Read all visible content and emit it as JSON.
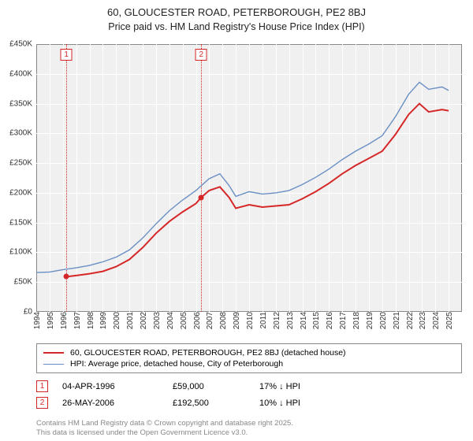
{
  "title": "60, GLOUCESTER ROAD, PETERBOROUGH, PE2 8BJ",
  "subtitle": "Price paid vs. HM Land Registry's House Price Index (HPI)",
  "chart": {
    "type": "line",
    "background_color": "#f0f0f0",
    "grid_color": "#ffffff",
    "border_color": "#888888",
    "x": {
      "min": 1994,
      "max": 2026,
      "ticks": [
        1994,
        1995,
        1996,
        1997,
        1998,
        1999,
        2000,
        2001,
        2002,
        2003,
        2004,
        2005,
        2006,
        2007,
        2008,
        2009,
        2010,
        2011,
        2012,
        2013,
        2014,
        2015,
        2016,
        2017,
        2018,
        2019,
        2020,
        2021,
        2022,
        2023,
        2024,
        2025
      ]
    },
    "y": {
      "min": 0,
      "max": 450000,
      "ticks": [
        0,
        50000,
        100000,
        150000,
        200000,
        250000,
        300000,
        350000,
        400000,
        450000
      ],
      "tick_labels": [
        "£0",
        "£50K",
        "£100K",
        "£150K",
        "£200K",
        "£250K",
        "£300K",
        "£350K",
        "£400K",
        "£450K"
      ]
    },
    "series": [
      {
        "id": "price_paid",
        "label": "60, GLOUCESTER ROAD, PETERBOROUGH, PE2 8BJ (detached house)",
        "color": "#d62728",
        "line_width": 2,
        "points": [
          [
            1996.26,
            59000
          ],
          [
            1997,
            61000
          ],
          [
            1998,
            64000
          ],
          [
            1999,
            68000
          ],
          [
            2000,
            76000
          ],
          [
            2001,
            88000
          ],
          [
            2002,
            108000
          ],
          [
            2003,
            132000
          ],
          [
            2004,
            152000
          ],
          [
            2005,
            168000
          ],
          [
            2006,
            182000
          ],
          [
            2006.4,
            192500
          ],
          [
            2007,
            204000
          ],
          [
            2007.8,
            210000
          ],
          [
            2008.5,
            192000
          ],
          [
            2009,
            174000
          ],
          [
            2010,
            180000
          ],
          [
            2011,
            176000
          ],
          [
            2012,
            178000
          ],
          [
            2013,
            180000
          ],
          [
            2014,
            190000
          ],
          [
            2015,
            202000
          ],
          [
            2016,
            216000
          ],
          [
            2017,
            232000
          ],
          [
            2018,
            246000
          ],
          [
            2019,
            258000
          ],
          [
            2020,
            270000
          ],
          [
            2021,
            298000
          ],
          [
            2022,
            332000
          ],
          [
            2022.8,
            350000
          ],
          [
            2023.5,
            336000
          ],
          [
            2024.5,
            340000
          ],
          [
            2025,
            338000
          ]
        ]
      },
      {
        "id": "hpi",
        "label": "HPI: Average price, detached house, City of Peterborough",
        "color": "#6a8fc4",
        "line_width": 1.4,
        "points": [
          [
            1994,
            66000
          ],
          [
            1995,
            67000
          ],
          [
            1996,
            71000
          ],
          [
            1997,
            74000
          ],
          [
            1998,
            78000
          ],
          [
            1999,
            84000
          ],
          [
            2000,
            92000
          ],
          [
            2001,
            104000
          ],
          [
            2002,
            124000
          ],
          [
            2003,
            148000
          ],
          [
            2004,
            170000
          ],
          [
            2005,
            188000
          ],
          [
            2006,
            204000
          ],
          [
            2007,
            224000
          ],
          [
            2007.8,
            232000
          ],
          [
            2008.5,
            212000
          ],
          [
            2009,
            194000
          ],
          [
            2010,
            202000
          ],
          [
            2011,
            198000
          ],
          [
            2012,
            200000
          ],
          [
            2013,
            204000
          ],
          [
            2014,
            214000
          ],
          [
            2015,
            226000
          ],
          [
            2016,
            240000
          ],
          [
            2017,
            256000
          ],
          [
            2018,
            270000
          ],
          [
            2019,
            282000
          ],
          [
            2020,
            296000
          ],
          [
            2021,
            328000
          ],
          [
            2022,
            366000
          ],
          [
            2022.8,
            386000
          ],
          [
            2023.5,
            374000
          ],
          [
            2024.5,
            378000
          ],
          [
            2025,
            372000
          ]
        ]
      }
    ],
    "events": [
      {
        "n": "1",
        "date_x": 1996.26,
        "date_label": "04-APR-1996",
        "price": 59000,
        "price_label": "£59,000",
        "delta": "17% ↓ HPI",
        "color": "#d62728"
      },
      {
        "n": "2",
        "date_x": 2006.4,
        "date_label": "26-MAY-2006",
        "price": 192500,
        "price_label": "£192,500",
        "delta": "10% ↓ HPI",
        "color": "#d62728"
      }
    ]
  },
  "footer": {
    "line1": "Contains HM Land Registry data © Crown copyright and database right 2025.",
    "line2": "This data is licensed under the Open Government Licence v3.0."
  }
}
